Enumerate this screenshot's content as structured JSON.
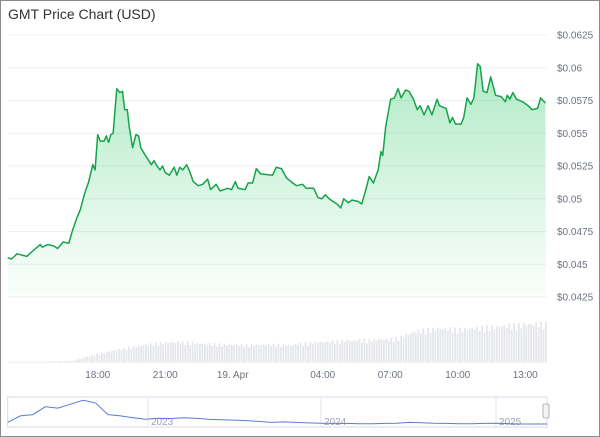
{
  "chart_data": {
    "type": "area",
    "title": "GMT Price Chart (USD)",
    "xlabel": "",
    "ylabel": "",
    "ylim": [
      0.0425,
      0.0625
    ],
    "grid": true,
    "y_ticks": [
      "$0.0625",
      "$0.06",
      "$0.0575",
      "$0.055",
      "$0.0525",
      "$0.05",
      "$0.0475",
      "$0.045",
      "$0.0425"
    ],
    "y_tick_values": [
      0.0625,
      0.06,
      0.0575,
      0.055,
      0.0525,
      0.05,
      0.0475,
      0.045,
      0.0425
    ],
    "x_range": [
      "04-18 14:00",
      "04-19 13:58"
    ],
    "x_ticks": [
      {
        "label": "18:00",
        "t": "04-18 18:00"
      },
      {
        "label": "21:00",
        "t": "04-18 21:00"
      },
      {
        "label": "19. Apr",
        "t": "04-19 00:00"
      },
      {
        "label": "04:00",
        "t": "04-19 04:00"
      },
      {
        "label": "07:00",
        "t": "04-19 07:00"
      },
      {
        "label": "10:00",
        "t": "04-19 10:00"
      },
      {
        "label": "13:00",
        "t": "04-19 13:00"
      }
    ],
    "line_color": "#16a34a",
    "fill_color": "#22c55e",
    "series": [
      {
        "x": [
          "04-18 14:00",
          "04-18 14:10",
          "04-18 14:25",
          "04-18 14:51",
          "04-18 15:06",
          "04-18 15:27",
          "04-18 15:32",
          "04-18 15:47",
          "04-18 16:02",
          "04-18 16:13",
          "04-18 16:28",
          "04-18 16:43",
          "04-18 16:53",
          "04-18 17:04",
          "04-18 17:14",
          "04-18 17:24",
          "04-18 17:36",
          "04-18 17:47",
          "04-18 17:53",
          "04-18 18:00",
          "04-18 18:07",
          "04-18 18:17",
          "04-18 18:23",
          "04-18 18:29",
          "04-18 18:35",
          "04-18 18:41",
          "04-18 18:51",
          "04-18 18:59",
          "04-18 19:06",
          "04-18 19:12",
          "04-18 19:19",
          "04-18 19:24",
          "04-18 19:33",
          "04-18 19:42",
          "04-18 19:49",
          "04-18 19:55",
          "04-18 20:05",
          "04-18 20:23",
          "04-18 20:30",
          "04-18 20:38",
          "04-18 20:46",
          "04-18 20:53",
          "04-18 21:00",
          "04-18 21:11",
          "04-18 21:24",
          "04-18 21:31",
          "04-18 21:39",
          "04-18 21:47",
          "04-18 21:57",
          "04-18 22:05",
          "04-18 22:15",
          "04-18 22:28",
          "04-18 22:40",
          "04-18 22:53",
          "04-18 23:01",
          "04-18 23:16",
          "04-18 23:26",
          "04-18 23:47",
          "04-18 23:57",
          "04-19 00:07",
          "04-19 00:14",
          "04-19 00:33",
          "04-19 00:41",
          "04-19 00:53",
          "04-19 01:03",
          "04-19 01:14",
          "04-19 01:46",
          "04-19 01:56",
          "04-19 02:10",
          "04-19 02:23",
          "04-19 02:40",
          "04-19 02:50",
          "04-19 03:06",
          "04-19 03:16",
          "04-19 03:36",
          "04-19 03:47",
          "04-19 03:57",
          "04-19 04:07",
          "04-19 04:17",
          "04-19 04:27",
          "04-19 04:38",
          "04-19 04:48",
          "04-19 04:56",
          "04-19 05:08",
          "04-19 05:18",
          "04-19 05:34",
          "04-19 05:44",
          "04-19 05:54",
          "04-19 06:04",
          "04-19 06:15",
          "04-19 06:28",
          "04-19 06:35",
          "04-19 06:40",
          "04-19 06:48",
          "04-19 07:01",
          "04-19 07:11",
          "04-19 07:21",
          "04-19 07:29",
          "04-19 07:41",
          "04-19 07:50",
          "04-19 08:02",
          "04-19 08:12",
          "04-19 08:20",
          "04-19 08:30",
          "04-19 08:41",
          "04-19 08:51",
          "04-19 09:05",
          "04-19 09:11",
          "04-19 09:29",
          "04-19 09:39",
          "04-19 09:46",
          "04-19 09:54",
          "04-19 10:09",
          "04-19 10:16",
          "04-19 10:25",
          "04-19 10:35",
          "04-19 10:43",
          "04-19 10:53",
          "04-19 11:00",
          "04-19 11:08",
          "04-19 11:18",
          "04-19 11:28",
          "04-19 11:41",
          "04-19 11:56",
          "04-19 12:07",
          "04-19 12:12",
          "04-19 12:19",
          "04-19 12:27",
          "04-19 12:37",
          "04-19 12:53",
          "04-19 13:08",
          "04-19 13:18",
          "04-19 13:33",
          "04-19 13:41",
          "04-19 13:54"
        ],
        "y": [
          0.0455,
          0.0454,
          0.0458,
          0.0456,
          0.046,
          0.0465,
          0.0463,
          0.0465,
          0.0464,
          0.0462,
          0.0467,
          0.0466,
          0.0476,
          0.0485,
          0.0492,
          0.0503,
          0.0513,
          0.0526,
          0.0522,
          0.0549,
          0.0544,
          0.0544,
          0.0548,
          0.0543,
          0.0549,
          0.055,
          0.0584,
          0.0581,
          0.0582,
          0.0568,
          0.0568,
          0.0555,
          0.0539,
          0.0549,
          0.0548,
          0.0539,
          0.0534,
          0.0526,
          0.0529,
          0.0525,
          0.0522,
          0.0525,
          0.052,
          0.0518,
          0.0524,
          0.0518,
          0.0524,
          0.0522,
          0.0526,
          0.0521,
          0.0513,
          0.051,
          0.0511,
          0.0515,
          0.0507,
          0.0511,
          0.0506,
          0.0508,
          0.0507,
          0.0513,
          0.0508,
          0.0507,
          0.0512,
          0.0512,
          0.0523,
          0.0519,
          0.0518,
          0.0524,
          0.0523,
          0.0516,
          0.0512,
          0.051,
          0.0511,
          0.0508,
          0.0508,
          0.0501,
          0.05,
          0.0503,
          0.05,
          0.0498,
          0.0496,
          0.0493,
          0.05,
          0.0497,
          0.0499,
          0.0498,
          0.0496,
          0.0506,
          0.0517,
          0.0512,
          0.0522,
          0.0536,
          0.0533,
          0.0555,
          0.0576,
          0.0577,
          0.0584,
          0.0577,
          0.0583,
          0.0582,
          0.0576,
          0.0568,
          0.0571,
          0.0564,
          0.0571,
          0.0564,
          0.0576,
          0.0571,
          0.0569,
          0.0558,
          0.0562,
          0.0557,
          0.0557,
          0.0562,
          0.0577,
          0.0572,
          0.0577,
          0.0603,
          0.0601,
          0.0582,
          0.0581,
          0.0593,
          0.0579,
          0.0578,
          0.0574,
          0.0579,
          0.0576,
          0.0581,
          0.0576,
          0.0574,
          0.0571,
          0.0568,
          0.0569,
          0.0577,
          0.0573
        ]
      }
    ],
    "volume": {
      "color": "#e5e7eb",
      "relative_hourly": [
        2,
        2,
        3,
        5,
        20,
        32,
        42,
        50,
        52,
        48,
        46,
        44,
        46,
        44,
        50,
        54,
        56,
        58,
        60,
        80,
        86,
        84,
        88,
        92,
        96,
        98
      ]
    },
    "navigator": {
      "color": "#5b7bd5",
      "year_labels": [
        "2023",
        "2024",
        "2025"
      ],
      "relative_values": [
        0.1,
        0.35,
        0.4,
        0.7,
        0.65,
        0.8,
        0.95,
        0.85,
        0.4,
        0.35,
        0.28,
        0.22,
        0.26,
        0.25,
        0.28,
        0.26,
        0.22,
        0.2,
        0.19,
        0.17,
        0.14,
        0.1,
        0.12,
        0.1,
        0.08,
        0.07,
        0.06,
        0.06,
        0.05,
        0.05,
        0.06,
        0.07,
        0.1,
        0.09,
        0.07,
        0.06,
        0.05,
        0.05,
        0.06,
        0.07,
        0.05,
        0.04,
        0.04,
        0.04
      ]
    }
  }
}
